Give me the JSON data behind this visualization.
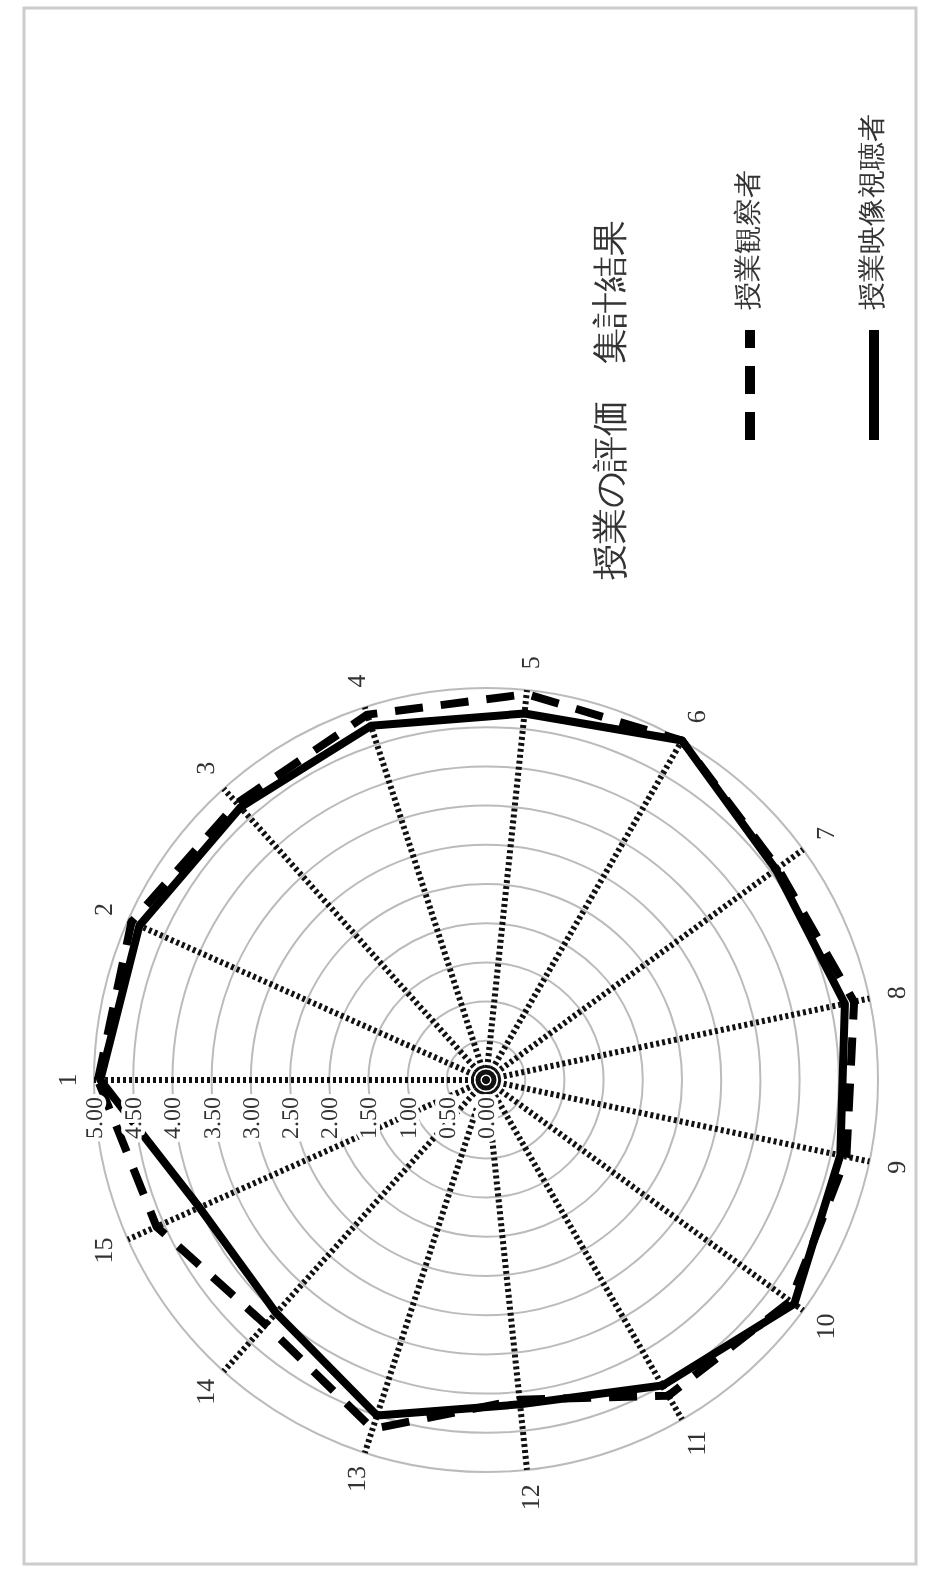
{
  "chart_data": {
    "type": "radar",
    "title": "授業の評価　集計結果",
    "categories": [
      "1",
      "2",
      "3",
      "4",
      "5",
      "6",
      "7",
      "8",
      "9",
      "10",
      "11",
      "12",
      "13",
      "14",
      "15"
    ],
    "ylim": [
      0,
      5
    ],
    "yticks": [
      {
        "value": 0,
        "label": "0.00"
      },
      {
        "value": 0.5,
        "label": "0.50"
      },
      {
        "value": 1,
        "label": "1.00"
      },
      {
        "value": 1.5,
        "label": "1.50"
      },
      {
        "value": 2,
        "label": "2.00"
      },
      {
        "value": 2.5,
        "label": "2.50"
      },
      {
        "value": 3,
        "label": "3.00"
      },
      {
        "value": 3.5,
        "label": "3.50"
      },
      {
        "value": 4,
        "label": "4.00"
      },
      {
        "value": 4.5,
        "label": "4.50"
      },
      {
        "value": 5,
        "label": "5.00"
      }
    ],
    "grid": true,
    "legend": "right",
    "series": [
      {
        "name": "授業観察者",
        "color": "#000000",
        "line_style": "dashed",
        "values": [
          4.95,
          4.95,
          4.75,
          4.9,
          4.95,
          5.0,
          4.6,
          4.8,
          4.7,
          4.8,
          4.65,
          4.1,
          4.68,
          4.2,
          4.6
        ]
      },
      {
        "name": "授業映像視聴者",
        "color": "#000000",
        "line_style": "solid",
        "values": [
          4.92,
          4.84,
          4.68,
          4.75,
          4.7,
          5.0,
          4.57,
          4.68,
          4.62,
          4.86,
          4.5,
          4.16,
          4.5,
          4.0,
          4.0
        ]
      }
    ]
  }
}
